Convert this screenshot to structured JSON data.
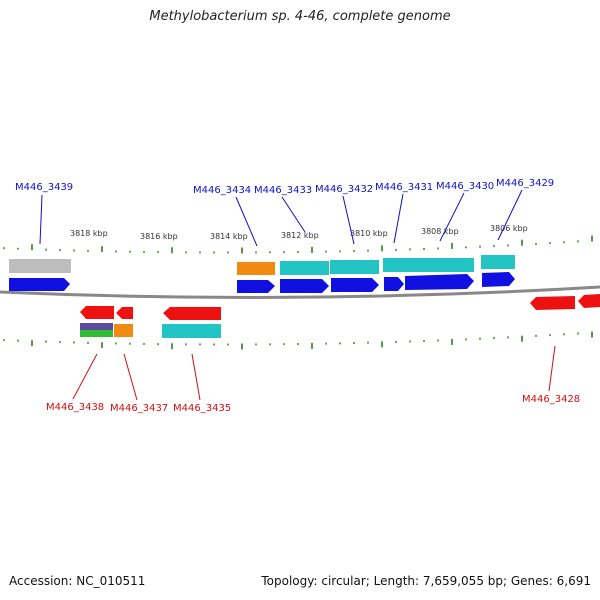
{
  "title": "Methylobacterium sp. 4-46, complete genome",
  "footer": {
    "accession": "Accession: NC_010511",
    "summary": "Topology: circular; Length: 7,659,055 bp; Genes: 6,691"
  },
  "colors": {
    "backbone": "#888888",
    "tick": "#2e7d1f",
    "upper_label": "#1010c8",
    "lower_label": "#d01010",
    "cds": "#1010e0",
    "gene_red": "#ee1111",
    "cyan": "#22c4c4",
    "orange": "#f08a10",
    "gray": "#bdbdbd",
    "purple": "#5a4aa0",
    "green": "#33bb33"
  },
  "scale_labels": [
    "3818 kbp",
    "3816 kbp",
    "3814 kbp",
    "3812 kbp",
    "3810 kbp",
    "3808 kbp",
    "3806 kbp"
  ],
  "upper_labels": [
    "M446_3439",
    "M446_3434",
    "M446_3433",
    "M446_3432",
    "M446_3431",
    "M446_3430",
    "M446_3429"
  ],
  "lower_labels": [
    "M446_3438",
    "M446_3437",
    "M446_3435",
    "M446_3428"
  ]
}
